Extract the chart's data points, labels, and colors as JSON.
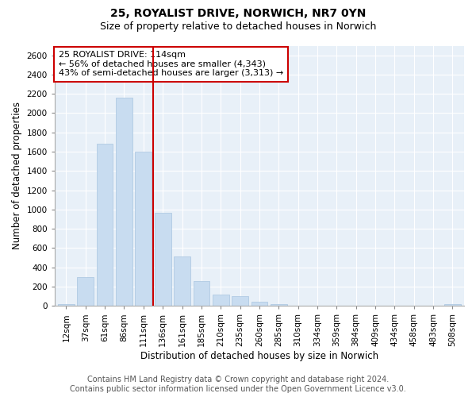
{
  "title": "25, ROYALIST DRIVE, NORWICH, NR7 0YN",
  "subtitle": "Size of property relative to detached houses in Norwich",
  "xlabel": "Distribution of detached houses by size in Norwich",
  "ylabel": "Number of detached properties",
  "categories": [
    "12sqm",
    "37sqm",
    "61sqm",
    "86sqm",
    "111sqm",
    "136sqm",
    "161sqm",
    "185sqm",
    "210sqm",
    "235sqm",
    "260sqm",
    "285sqm",
    "310sqm",
    "334sqm",
    "359sqm",
    "384sqm",
    "409sqm",
    "434sqm",
    "458sqm",
    "483sqm",
    "508sqm"
  ],
  "values": [
    20,
    300,
    1680,
    2160,
    1600,
    970,
    510,
    255,
    120,
    100,
    40,
    15,
    0,
    0,
    0,
    0,
    0,
    0,
    0,
    0,
    20
  ],
  "bar_color": "#c8dcf0",
  "bar_edgecolor": "#a8c4e0",
  "property_line_index": 4.5,
  "property_line_color": "#cc0000",
  "annotation_text": "25 ROYALIST DRIVE: 114sqm\n← 56% of detached houses are smaller (4,343)\n43% of semi-detached houses are larger (3,313) →",
  "annotation_box_color": "#ffffff",
  "annotation_box_edgecolor": "#cc0000",
  "ylim": [
    0,
    2700
  ],
  "yticks": [
    0,
    200,
    400,
    600,
    800,
    1000,
    1200,
    1400,
    1600,
    1800,
    2000,
    2200,
    2400,
    2600
  ],
  "footer_line1": "Contains HM Land Registry data © Crown copyright and database right 2024.",
  "footer_line2": "Contains public sector information licensed under the Open Government Licence v3.0.",
  "background_color": "#ffffff",
  "plot_background_color": "#e8f0f8",
  "grid_color": "#ffffff",
  "title_fontsize": 10,
  "subtitle_fontsize": 9,
  "axis_label_fontsize": 8.5,
  "tick_fontsize": 7.5,
  "footer_fontsize": 7,
  "annotation_fontsize": 8
}
